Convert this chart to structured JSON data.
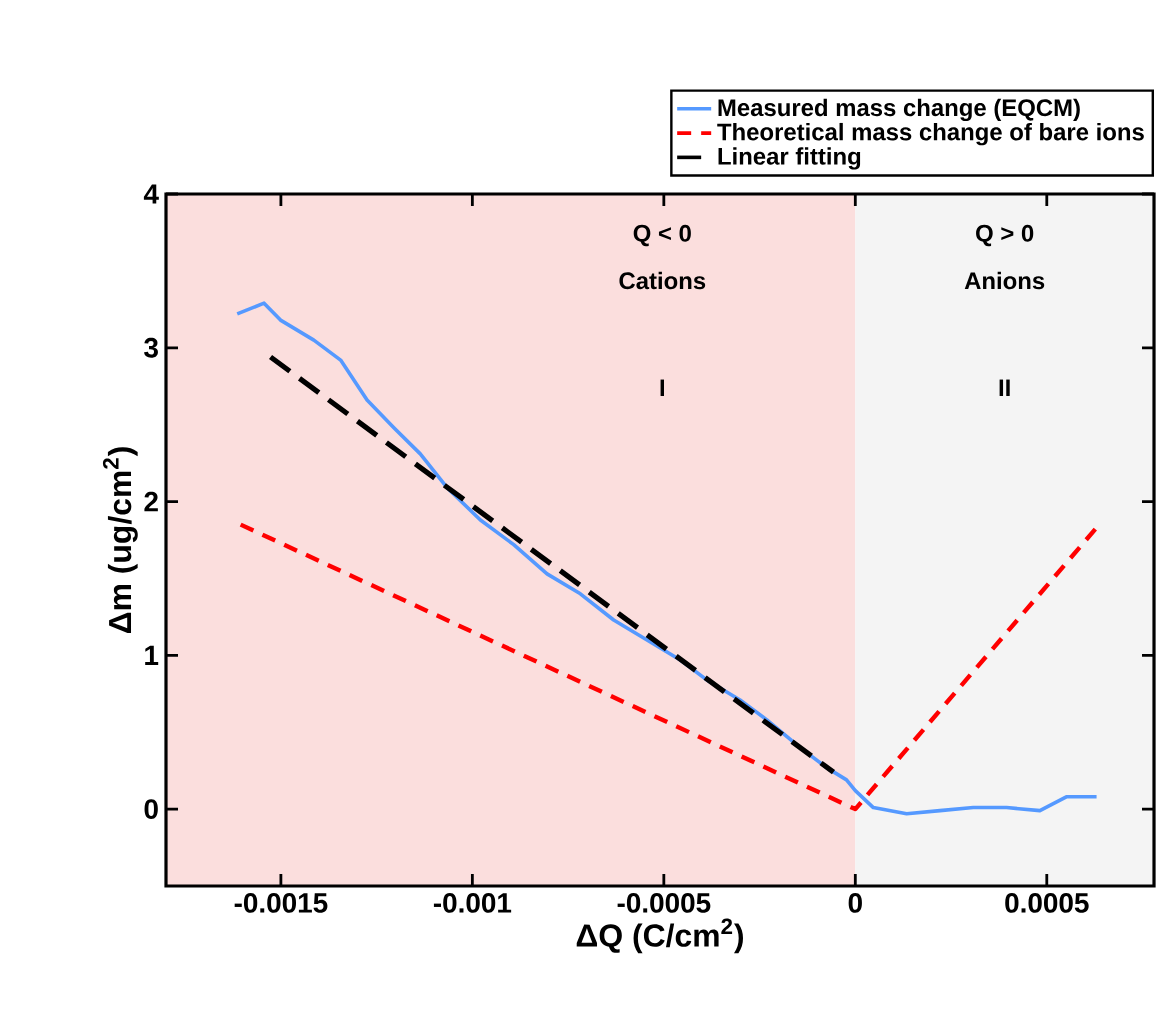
{
  "chart_data": {
    "type": "line",
    "xlabel": "ΔQ (C/cm$^{2}$)",
    "ylabel": "Δm (ug/cm$^{2}$)",
    "xlim": [
      -0.0018,
      0.00078
    ],
    "ylim": [
      -0.5,
      4
    ],
    "xticks": [
      -0.0015,
      -0.001,
      -0.0005,
      0,
      0.0005
    ],
    "yticks": [
      0,
      1,
      2,
      3,
      4
    ],
    "legend": "top right",
    "grid": false,
    "series": [
      {
        "name": "Measured mass change (EQCM)",
        "color": "#5599ff",
        "line_style": "solid",
        "x": [
          -0.001614,
          -0.001544,
          -0.001501,
          -0.001414,
          -0.001344,
          -0.001275,
          -0.001205,
          -0.001136,
          -0.001066,
          -0.000979,
          -0.000892,
          -0.000805,
          -0.000718,
          -0.000631,
          -0.000544,
          -0.000457,
          -0.000388,
          -0.000301,
          -0.000231,
          -0.000144,
          -7.5e-05,
          -2.3e-05,
          0,
          4.7e-05,
          0.000134,
          0.000221,
          0.000308,
          0.000395,
          0.000482,
          0.000551,
          0.00063
        ],
        "values": [
          3.22,
          3.29,
          3.18,
          3.05,
          2.92,
          2.66,
          2.48,
          2.31,
          2.09,
          1.88,
          1.72,
          1.53,
          1.4,
          1.23,
          1.1,
          0.97,
          0.84,
          0.71,
          0.58,
          0.4,
          0.27,
          0.19,
          0.12,
          0.01,
          -0.03,
          -0.01,
          0.01,
          0.01,
          -0.01,
          0.08,
          0.08
        ]
      },
      {
        "name": "Theoretical mass change of bare ions",
        "color": "#ff0000",
        "line_style": "dashed",
        "x": [
          -0.001605,
          0,
          0.00063
        ],
        "values": [
          1.85,
          0,
          1.83
        ]
      },
      {
        "name": "Linear fitting",
        "color": "#000000",
        "line_style": "dashed",
        "x": [
          -0.001527,
          -5.7e-05
        ],
        "values": [
          2.94,
          0.24
        ]
      }
    ],
    "bands": [
      {
        "axis": "x",
        "from": -0.0018,
        "to": 0,
        "color": "#fbdedd"
      },
      {
        "axis": "x",
        "from": 0,
        "to": 0.00078,
        "color": "#f4f4f4"
      }
    ],
    "annotations": [
      "Q < 0",
      "Cations",
      "I",
      "Q > 0",
      "Anions",
      "II"
    ]
  }
}
